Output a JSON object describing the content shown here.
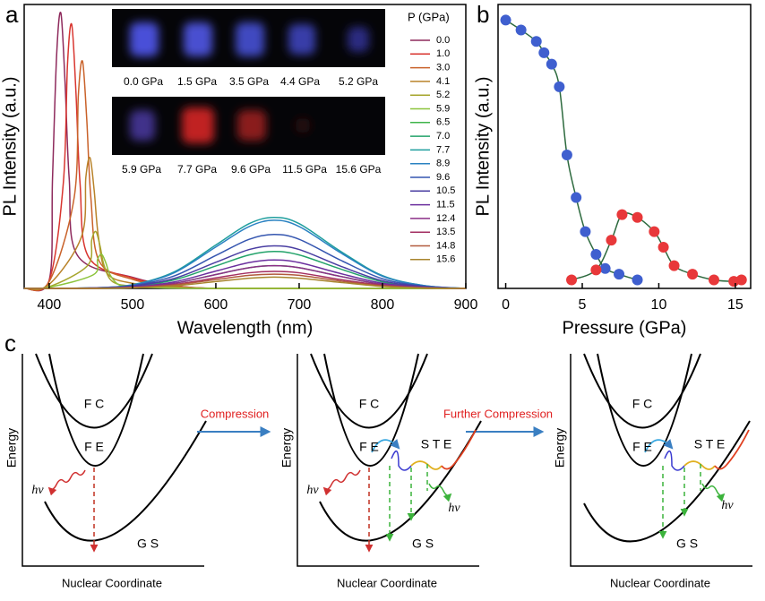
{
  "chart_data": [
    {
      "type": "line",
      "panel_label": "a",
      "x_label": "Wavelength (nm)",
      "y_label": "PL Intensity (a.u.)",
      "legend_title": "P (GPa)",
      "legend": "top-right",
      "annotations": [
        "0.0 GPa",
        "1.5 GPa",
        "3.5 GPa",
        "4.4 GPa",
        "5.2 GPa",
        "5.9  GPa",
        "7.7 GPa",
        "9.6 GPa",
        "11.5 GPa",
        "15.6 GPa"
      ],
      "xlim": [
        370,
        900
      ],
      "xticks": [
        400,
        500,
        600,
        700,
        800,
        900
      ],
      "ylim": [
        0,
        100
      ],
      "series": [
        {
          "name": "0.0",
          "color": "#8e2a5c",
          "x": [
            370,
            400,
            404,
            409,
            414,
            419,
            424,
            434,
            500,
            550,
            600,
            700,
            900
          ],
          "values": [
            0,
            2.9,
            38.8,
            82.5,
            97,
            72.8,
            38.8,
            11.6,
            3.9,
            1,
            0,
            0,
            0
          ]
        },
        {
          "name": "1.0",
          "color": "#d8352f",
          "x": [
            370,
            400,
            417,
            422,
            427,
            432,
            437,
            447,
            500,
            550,
            600,
            700,
            900
          ],
          "values": [
            0,
            2.8,
            37.2,
            79,
            93,
            69.8,
            37.2,
            11.2,
            3.7,
            0.9,
            0,
            0,
            0
          ]
        },
        {
          "name": "3.0",
          "color": "#c9622a",
          "x": [
            370,
            400,
            430,
            435,
            440,
            445,
            450,
            460,
            500,
            550,
            600,
            700,
            900
          ],
          "values": [
            0,
            2.4,
            32,
            68,
            80,
            60,
            32,
            9.6,
            3.2,
            0.8,
            0,
            0,
            0
          ]
        },
        {
          "name": "4.1",
          "color": "#b9832a",
          "x": [
            370,
            400,
            439,
            444,
            449,
            454,
            459,
            469,
            500,
            550,
            600,
            700,
            900
          ],
          "values": [
            0,
            1.4,
            18.4,
            39.1,
            46,
            34.5,
            18.4,
            5.5,
            1.8,
            0.5,
            0,
            0,
            0
          ]
        },
        {
          "name": "5.2",
          "color": "#a6a52c",
          "x": [
            370,
            400,
            446,
            451,
            456,
            461,
            466,
            476,
            500,
            550,
            600,
            700,
            900
          ],
          "values": [
            0,
            0.6,
            8,
            17,
            20,
            15,
            8,
            2.4,
            0.8,
            0.2,
            0,
            0,
            0
          ]
        },
        {
          "name": "5.9",
          "color": "#8cc43c",
          "x": [
            370,
            400,
            453,
            458,
            463,
            468,
            473,
            483,
            500,
            550,
            600,
            700,
            900
          ],
          "values": [
            0,
            0.4,
            4.8,
            10.2,
            12,
            9,
            4.8,
            1.4,
            0.5,
            0.1,
            0,
            0,
            0
          ]
        },
        {
          "name": "6.5",
          "color": "#3fb44a",
          "x": [
            370,
            450,
            500,
            550,
            600,
            640,
            670,
            700,
            750,
            800,
            850,
            900
          ],
          "values": [
            0,
            0.1,
            0.4,
            1.8,
            4.9,
            7.3,
            8,
            7.3,
            4.2,
            1.4,
            0.3,
            0
          ]
        },
        {
          "name": "7.0",
          "color": "#23a36a",
          "x": [
            370,
            450,
            500,
            550,
            600,
            640,
            670,
            700,
            750,
            800,
            850,
            900
          ],
          "values": [
            0,
            0.1,
            0.7,
            3,
            7.9,
            11.8,
            13,
            11.8,
            6.8,
            2.3,
            0.5,
            0
          ]
        },
        {
          "name": "7.7",
          "color": "#1f9e9e",
          "x": [
            370,
            450,
            500,
            550,
            600,
            640,
            670,
            700,
            750,
            800,
            850,
            900
          ],
          "values": [
            0,
            0.2,
            1.3,
            5.8,
            15.3,
            22.8,
            25,
            22.8,
            13,
            4.5,
            1,
            0
          ]
        },
        {
          "name": "8.9",
          "color": "#2a82c2",
          "x": [
            370,
            450,
            500,
            550,
            600,
            640,
            670,
            700,
            750,
            800,
            850,
            900
          ],
          "values": [
            0,
            0.2,
            1.2,
            5.5,
            14.6,
            21.8,
            24,
            21.8,
            12.5,
            4.3,
            1,
            0
          ]
        },
        {
          "name": "9.6",
          "color": "#3556b0",
          "x": [
            370,
            450,
            500,
            550,
            600,
            640,
            670,
            700,
            750,
            800,
            850,
            900
          ],
          "values": [
            0,
            0.1,
            1,
            4.4,
            11.6,
            17.3,
            19,
            17.3,
            9.9,
            3.4,
            0.8,
            0
          ]
        },
        {
          "name": "10.5",
          "color": "#4a3ea2",
          "x": [
            370,
            450,
            500,
            550,
            600,
            640,
            670,
            700,
            750,
            800,
            850,
            900
          ],
          "values": [
            0,
            0.1,
            0.8,
            3.5,
            9.2,
            13.7,
            15,
            13.7,
            7.8,
            2.7,
            0.6,
            0
          ]
        },
        {
          "name": "11.5",
          "color": "#6b2f9e",
          "x": [
            370,
            450,
            500,
            550,
            600,
            640,
            670,
            700,
            750,
            800,
            850,
            900
          ],
          "values": [
            0,
            0.1,
            0.5,
            2.3,
            6.1,
            9.1,
            10,
            9.1,
            5.2,
            1.8,
            0.4,
            0
          ]
        },
        {
          "name": "12.4",
          "color": "#8b2f88",
          "x": [
            370,
            450,
            500,
            550,
            600,
            640,
            670,
            700,
            750,
            800,
            850,
            900
          ],
          "values": [
            0,
            0.1,
            0.4,
            1.8,
            4.9,
            7.3,
            8,
            7.3,
            4.2,
            1.4,
            0.3,
            0
          ]
        },
        {
          "name": "13.5",
          "color": "#a32f62",
          "x": [
            370,
            450,
            500,
            550,
            600,
            640,
            670,
            700,
            750,
            800,
            850,
            900
          ],
          "values": [
            0,
            0,
            0.3,
            1.4,
            3.7,
            5.5,
            6,
            5.5,
            3.1,
            1.1,
            0.2,
            0
          ]
        },
        {
          "name": "14.8",
          "color": "#b25a3e",
          "x": [
            370,
            450,
            500,
            550,
            600,
            640,
            670,
            700,
            750,
            800,
            850,
            900
          ],
          "values": [
            0,
            0,
            0.3,
            1.2,
            3.1,
            4.6,
            5,
            4.6,
            2.6,
            0.9,
            0.2,
            0
          ]
        },
        {
          "name": "15.6",
          "color": "#a8852e",
          "x": [
            370,
            450,
            500,
            550,
            600,
            640,
            670,
            700,
            750,
            800,
            850,
            900
          ],
          "values": [
            0,
            0,
            0.2,
            0.9,
            2.4,
            3.6,
            4,
            3.6,
            2.1,
            0.7,
            0.2,
            0
          ]
        }
      ]
    },
    {
      "type": "line",
      "panel_label": "b",
      "x_label": "Pressure (GPa)",
      "y_label": "PL Intensity (a.u.)",
      "marker": "circle",
      "line_color": "#2d6a3e",
      "xlim": [
        -0.5,
        16
      ],
      "xticks": [
        0,
        5,
        10,
        15
      ],
      "ylim": [
        0,
        100
      ],
      "series": [
        {
          "color": "#3f5fcf",
          "x": [
            0,
            1,
            2,
            2.5,
            3,
            3.5,
            4,
            4.6,
            5.2,
            5.9,
            6.5,
            7.4,
            8.6
          ],
          "values": [
            94.5,
            91,
            87,
            83,
            79,
            71,
            47,
            32,
            20,
            12,
            7,
            5,
            3
          ]
        },
        {
          "color": "#e8383a",
          "x": [
            4.3,
            5.9,
            6.9,
            7.6,
            8.6,
            9.7,
            10.3,
            11,
            12.2,
            13.6,
            14.9,
            15.4
          ],
          "values": [
            3,
            6.5,
            17,
            26,
            25,
            20,
            14.5,
            8,
            5,
            3,
            2.5,
            3
          ]
        }
      ]
    }
  ],
  "diagram": {
    "label": "c",
    "steps": [
      "Compression",
      "Further Compression"
    ],
    "panels": [
      {
        "fc": "F C",
        "fe": "F E",
        "gs": "G S",
        "y_label": "Energy",
        "x_label": "Nuclear Coordinate",
        "emission": "hν"
      },
      {
        "fc": "F C",
        "fe": "F E",
        "gs": "G S",
        "y_label": "Energy",
        "x_label": "Nuclear Coordinate",
        "emission": "hν",
        "ste": "S T E",
        "ste_emission": "hν"
      },
      {
        "fc": "F C",
        "fe": "F E",
        "gs": "G S",
        "y_label": "Energy",
        "x_label": "Nuclear Coordinate",
        "ste": "S T E",
        "ste_emission": "hν"
      }
    ]
  }
}
